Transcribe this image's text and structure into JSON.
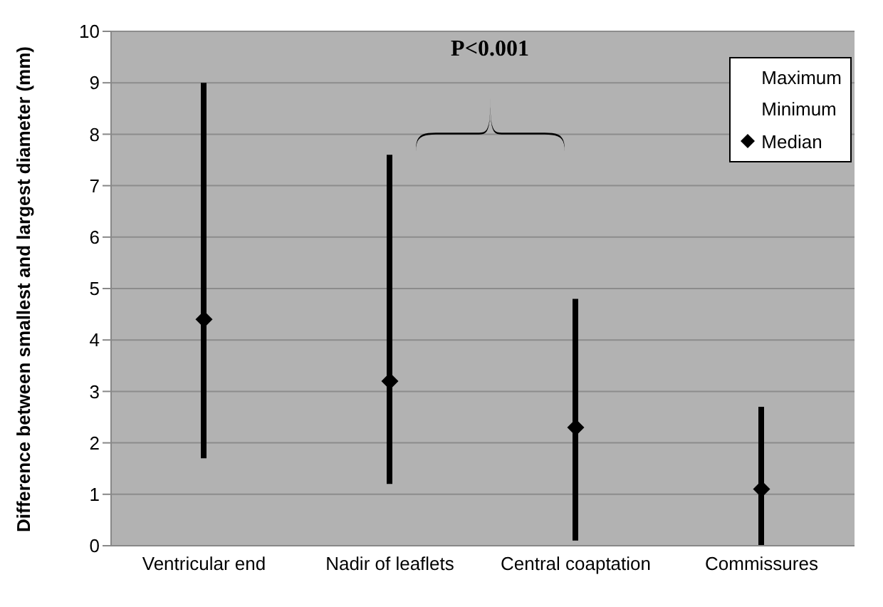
{
  "chart_data": {
    "type": "bar",
    "ylabel": "Difference between smallest and largest diameter (mm)",
    "categories": [
      "Ventricular end",
      "Nadir of leaflets",
      "Central coaptation",
      "Commissures"
    ],
    "series": [
      {
        "color": "#000000",
        "base": [
          1.7,
          1.2,
          0.1,
          0
        ],
        "values": [
          7.3,
          6.4,
          4.7,
          2.7
        ]
      },
      {
        "name": "Median",
        "type": "scatter",
        "color": "#000000",
        "marker": "diamond",
        "x": [
          "Ventricular end",
          "Nadir of leaflets",
          "Central coaptation",
          "Commissures"
        ],
        "values": [
          4.4,
          3.2,
          2.3,
          1.1
        ]
      }
    ],
    "ylim": [
      0,
      10
    ],
    "yticks": [
      0,
      1,
      2,
      3,
      4,
      5,
      6,
      7,
      8,
      9,
      10
    ],
    "grid": "y",
    "legend": "top right",
    "annotations": [
      "P<0.001",
      "Maximum",
      "Minimum"
    ]
  }
}
